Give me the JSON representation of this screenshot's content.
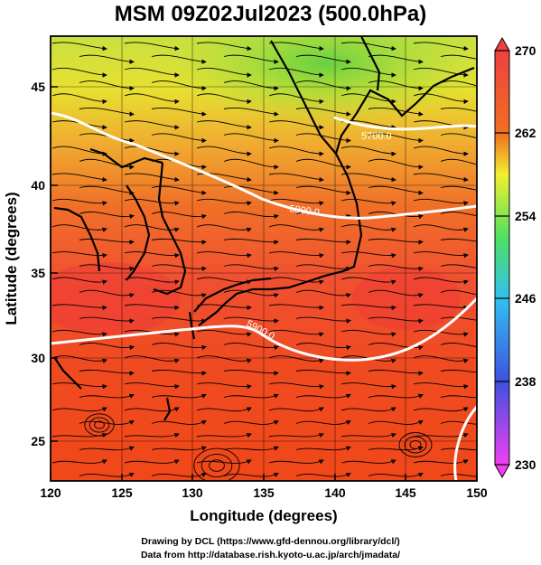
{
  "title": "MSM 09Z02Jul2023 (500.0hPa)",
  "x_axis": {
    "label": "Longitude (degrees)",
    "ticks": [
      "120",
      "125",
      "130",
      "135",
      "140",
      "145",
      "150"
    ],
    "range": [
      120,
      150
    ]
  },
  "y_axis": {
    "label": "Latitude  (degrees)",
    "ticks": [
      "25",
      "30",
      "35",
      "40",
      "45"
    ],
    "range": [
      22.4,
      47.6
    ]
  },
  "colorbar": {
    "ticks": [
      "270",
      "262",
      "254",
      "246",
      "238",
      "230"
    ],
    "range": [
      230,
      270
    ],
    "colors": [
      "#f040f0",
      "#4050e0",
      "#30c0f0",
      "#50e060",
      "#f0f030",
      "#f07020",
      "#f04040"
    ]
  },
  "contours": [
    {
      "label": "5700.0"
    },
    {
      "label": "5800.0"
    },
    {
      "label": "5900.0"
    }
  ],
  "credits": {
    "line1": "Drawing by DCL (https://www.gfd-dennou.org/library/dcl/)",
    "line2": "Data from http://database.rish.kyoto-u.ac.jp/arch/jmadata/"
  }
}
